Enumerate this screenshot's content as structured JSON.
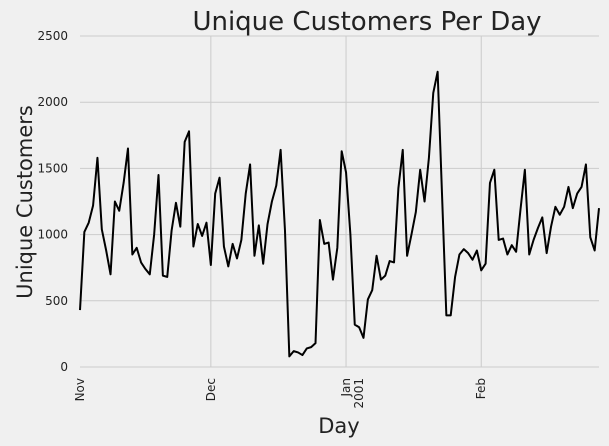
{
  "chart_data": {
    "type": "line",
    "title": "Unique Customers Per Day",
    "xlabel": "Day",
    "ylabel": "Unique Customers",
    "ylim": [
      0,
      2500
    ],
    "xlim": [
      "2000-11-01",
      "2001-02-28"
    ],
    "grid": true,
    "yticks": [
      0,
      500,
      1000,
      1500,
      2000,
      2500
    ],
    "xticks": [
      {
        "date": "2000-11-01",
        "label": "Nov",
        "sublabel": ""
      },
      {
        "date": "2000-12-01",
        "label": "Dec",
        "sublabel": ""
      },
      {
        "date": "2001-01-01",
        "label": "Jan",
        "sublabel": "2001"
      },
      {
        "date": "2001-02-01",
        "label": "Feb",
        "sublabel": ""
      }
    ],
    "series": [
      {
        "color": "#000000",
        "x": [
          "2000-11-01",
          "2000-11-02",
          "2000-11-03",
          "2000-11-04",
          "2000-11-05",
          "2000-11-06",
          "2000-11-07",
          "2000-11-08",
          "2000-11-09",
          "2000-11-10",
          "2000-11-11",
          "2000-11-12",
          "2000-11-13",
          "2000-11-14",
          "2000-11-15",
          "2000-11-16",
          "2000-11-17",
          "2000-11-18",
          "2000-11-19",
          "2000-11-20",
          "2000-11-21",
          "2000-11-22",
          "2000-11-23",
          "2000-11-24",
          "2000-11-25",
          "2000-11-26",
          "2000-11-27",
          "2000-11-28",
          "2000-11-29",
          "2000-11-30",
          "2000-12-01",
          "2000-12-02",
          "2000-12-03",
          "2000-12-04",
          "2000-12-05",
          "2000-12-06",
          "2000-12-07",
          "2000-12-08",
          "2000-12-09",
          "2000-12-10",
          "2000-12-11",
          "2000-12-12",
          "2000-12-13",
          "2000-12-14",
          "2000-12-15",
          "2000-12-16",
          "2000-12-17",
          "2000-12-18",
          "2000-12-19",
          "2000-12-20",
          "2000-12-21",
          "2000-12-22",
          "2000-12-23",
          "2000-12-24",
          "2000-12-25",
          "2000-12-26",
          "2000-12-27",
          "2000-12-28",
          "2000-12-29",
          "2000-12-30",
          "2000-12-31",
          "2001-01-01",
          "2001-01-02",
          "2001-01-03",
          "2001-01-04",
          "2001-01-05",
          "2001-01-06",
          "2001-01-07",
          "2001-01-08",
          "2001-01-09",
          "2001-01-10",
          "2001-01-11",
          "2001-01-12",
          "2001-01-13",
          "2001-01-14",
          "2001-01-15",
          "2001-01-16",
          "2001-01-17",
          "2001-01-18",
          "2001-01-19",
          "2001-01-20",
          "2001-01-21",
          "2001-01-22",
          "2001-01-23",
          "2001-01-24",
          "2001-01-25",
          "2001-01-26",
          "2001-01-27",
          "2001-01-28",
          "2001-01-29",
          "2001-01-30",
          "2001-01-31",
          "2001-02-01",
          "2001-02-02",
          "2001-02-03",
          "2001-02-04",
          "2001-02-05",
          "2001-02-06",
          "2001-02-07",
          "2001-02-08",
          "2001-02-09",
          "2001-02-10",
          "2001-02-11",
          "2001-02-12",
          "2001-02-13",
          "2001-02-14",
          "2001-02-15",
          "2001-02-16",
          "2001-02-17",
          "2001-02-18",
          "2001-02-19",
          "2001-02-20",
          "2001-02-21",
          "2001-02-22",
          "2001-02-23",
          "2001-02-24",
          "2001-02-25",
          "2001-02-26",
          "2001-02-27",
          "2001-02-28"
        ],
        "values": [
          430,
          1020,
          1090,
          1220,
          1580,
          1040,
          880,
          700,
          1250,
          1180,
          1390,
          1650,
          850,
          900,
          790,
          740,
          700,
          1000,
          1450,
          690,
          680,
          1030,
          1240,
          1060,
          1700,
          1780,
          910,
          1080,
          990,
          1090,
          770,
          1310,
          1430,
          910,
          760,
          930,
          820,
          960,
          1310,
          1530,
          840,
          1070,
          780,
          1080,
          1250,
          1370,
          1640,
          1030,
          80,
          120,
          110,
          90,
          140,
          150,
          180,
          1110,
          930,
          940,
          660,
          900,
          1630,
          1470,
          1000,
          320,
          300,
          220,
          510,
          580,
          840,
          660,
          690,
          800,
          790,
          1350,
          1640,
          840,
          1000,
          1170,
          1490,
          1250,
          1580,
          2070,
          2230,
          1310,
          390,
          390,
          680,
          850,
          890,
          860,
          810,
          880,
          730,
          780,
          1390,
          1490,
          960,
          970,
          850,
          920,
          870,
          1190,
          1490,
          850,
          960,
          1050,
          1130,
          860,
          1060,
          1210,
          1150,
          1210,
          1360,
          1200,
          1310,
          1360,
          1530,
          980,
          880,
          1200
        ]
      }
    ]
  }
}
